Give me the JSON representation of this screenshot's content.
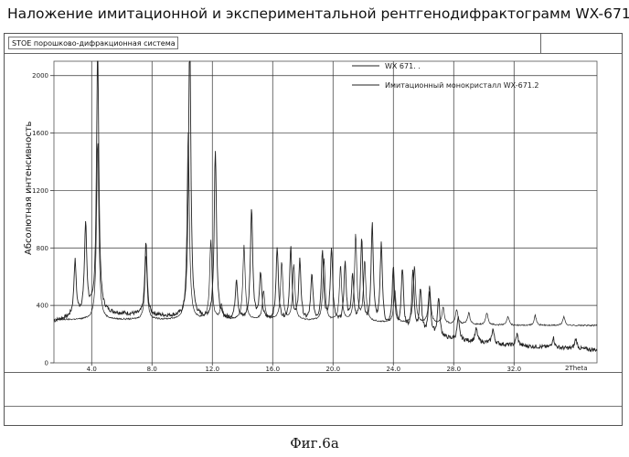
{
  "page": {
    "title": "Наложение имитационной и экспериментальной рентгенодифрактограмм WX-671.2",
    "caption": "Фиг.6а"
  },
  "window": {
    "title": "STOE порошково-дифракционная система"
  },
  "chart_data": {
    "type": "line",
    "ylabel": "Абсолютная интенсивность",
    "xlabel_unit": "2Theta",
    "xlim": [
      1.5,
      37.5
    ],
    "ylim": [
      0,
      2100
    ],
    "x_ticks": [
      4.0,
      8.0,
      12.0,
      16.0,
      20.0,
      24.0,
      28.0,
      32.0
    ],
    "x_tick_labels": [
      "4.0",
      "8.0",
      "12.0",
      "16.0",
      "20.0",
      "24.0",
      "28.0",
      "32.0"
    ],
    "y_ticks": [
      0,
      400,
      800,
      1200,
      1600,
      2000
    ],
    "y_tick_labels": [
      "0",
      "400",
      "800",
      "1200",
      "1600",
      "2000"
    ],
    "colors": {
      "line": "#222222",
      "grid": "#333333"
    },
    "series": [
      {
        "name": "WX-671.",
        "legend_label": "WX 671. .",
        "baseline": [
          [
            1.5,
            290
          ],
          [
            4.0,
            350
          ],
          [
            8.0,
            330
          ],
          [
            12.0,
            300
          ],
          [
            16.0,
            290
          ],
          [
            20.0,
            270
          ],
          [
            24.0,
            230
          ],
          [
            28.0,
            160
          ],
          [
            32.0,
            120
          ],
          [
            37.5,
            90
          ]
        ],
        "peaks": [
          [
            2.9,
            380
          ],
          [
            3.6,
            620
          ],
          [
            4.4,
            1850
          ],
          [
            7.6,
            500
          ],
          [
            10.5,
            2020
          ],
          [
            12.2,
            1180
          ],
          [
            13.6,
            280
          ],
          [
            14.6,
            780
          ],
          [
            15.2,
            320
          ],
          [
            16.3,
            500
          ],
          [
            17.2,
            500
          ],
          [
            17.8,
            420
          ],
          [
            18.6,
            320
          ],
          [
            19.3,
            500
          ],
          [
            19.9,
            520
          ],
          [
            20.8,
            420
          ],
          [
            21.3,
            340
          ],
          [
            21.9,
            600
          ],
          [
            22.6,
            700
          ],
          [
            23.2,
            570
          ],
          [
            24.0,
            420
          ],
          [
            24.6,
            420
          ],
          [
            25.3,
            420
          ],
          [
            25.8,
            300
          ],
          [
            26.4,
            300
          ],
          [
            27.0,
            270
          ],
          [
            28.3,
            150
          ],
          [
            29.5,
            90
          ],
          [
            30.6,
            100
          ],
          [
            32.2,
            80
          ],
          [
            34.6,
            70
          ],
          [
            36.1,
            70
          ]
        ]
      },
      {
        "name": "Имитационный монокристалл WX-671.2",
        "legend_label": "Имитационный монокристалл WX-671.2",
        "baseline": [
          [
            1.5,
            300
          ],
          [
            4.0,
            300
          ],
          [
            8.0,
            300
          ],
          [
            12.0,
            300
          ],
          [
            16.0,
            300
          ],
          [
            20.0,
            290
          ],
          [
            24.0,
            280
          ],
          [
            28.0,
            270
          ],
          [
            32.0,
            260
          ],
          [
            37.5,
            260
          ]
        ],
        "peaks": [
          [
            4.4,
            1250
          ],
          [
            7.6,
            450
          ],
          [
            10.4,
            1300
          ],
          [
            11.9,
            550
          ],
          [
            12.6,
            100
          ],
          [
            14.1,
            520
          ],
          [
            15.4,
            200
          ],
          [
            16.6,
            400
          ],
          [
            17.4,
            380
          ],
          [
            19.4,
            430
          ],
          [
            20.5,
            380
          ],
          [
            21.5,
            600
          ],
          [
            22.1,
            420
          ],
          [
            24.1,
            220
          ],
          [
            25.4,
            400
          ],
          [
            26.4,
            260
          ],
          [
            27.3,
            110
          ],
          [
            28.2,
            100
          ],
          [
            29.0,
            80
          ],
          [
            30.2,
            80
          ],
          [
            31.6,
            60
          ],
          [
            33.4,
            70
          ],
          [
            35.3,
            60
          ]
        ]
      }
    ],
    "legend_position": "top-right",
    "grid": true
  }
}
